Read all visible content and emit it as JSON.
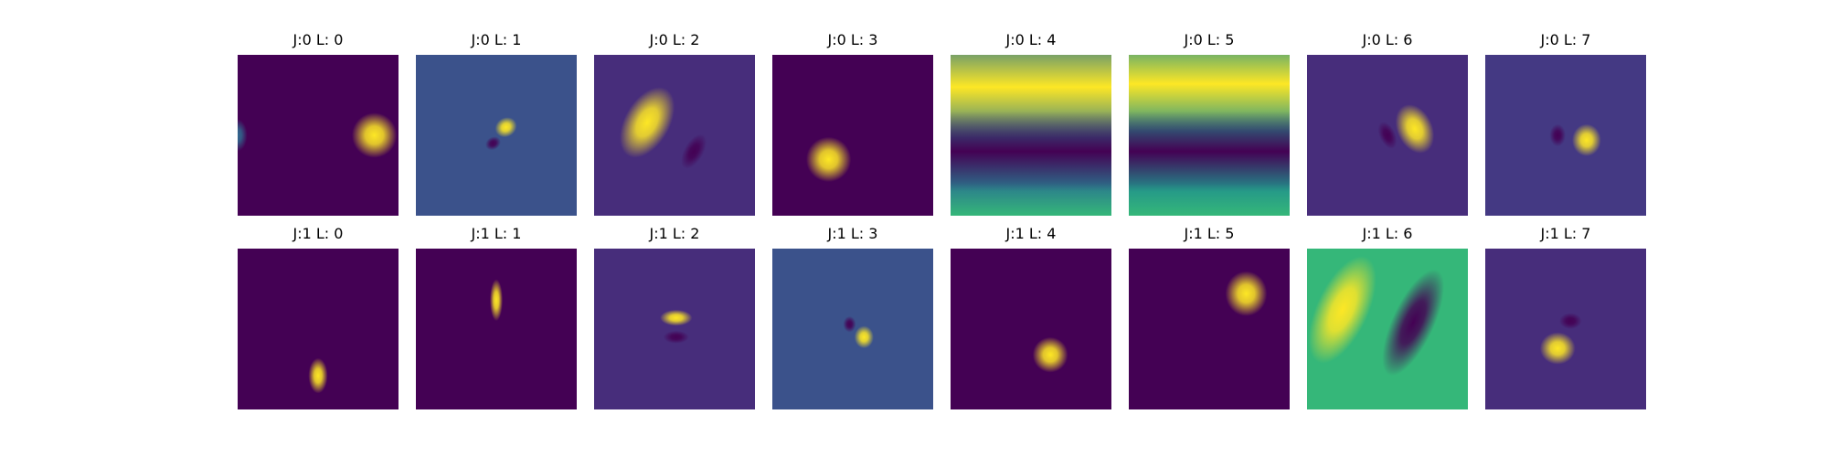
{
  "chart_data": [
    {
      "type": "heatmap",
      "title": "J:0 L: 0",
      "colormap": "viridis",
      "background": "#440154",
      "blobs": [
        {
          "cx": 0.85,
          "cy": 0.5,
          "rx": 0.14,
          "ry": 0.14,
          "rot": 0,
          "color": "#fde725"
        },
        {
          "cx": 0.0,
          "cy": 0.5,
          "rx": 0.06,
          "ry": 0.1,
          "rot": 0,
          "color": "#31688e"
        }
      ]
    },
    {
      "type": "heatmap",
      "title": "J:0 L: 1",
      "colormap": "viridis",
      "background": "#3b528b",
      "blobs": [
        {
          "cx": 0.56,
          "cy": 0.45,
          "rx": 0.07,
          "ry": 0.06,
          "rot": -30,
          "color": "#fde725"
        },
        {
          "cx": 0.48,
          "cy": 0.55,
          "rx": 0.05,
          "ry": 0.04,
          "rot": -30,
          "color": "#440154"
        }
      ]
    },
    {
      "type": "heatmap",
      "title": "J:0 L: 2",
      "colormap": "viridis",
      "background": "#472d7b",
      "blobs": [
        {
          "cx": 0.33,
          "cy": 0.42,
          "rx": 0.14,
          "ry": 0.24,
          "rot": 30,
          "color": "#fde725"
        },
        {
          "cx": 0.62,
          "cy": 0.6,
          "rx": 0.06,
          "ry": 0.12,
          "rot": 30,
          "color": "#440154"
        }
      ]
    },
    {
      "type": "heatmap",
      "title": "J:0 L: 3",
      "colormap": "viridis",
      "background": "#440154",
      "blobs": [
        {
          "cx": 0.35,
          "cy": 0.65,
          "rx": 0.14,
          "ry": 0.14,
          "rot": 0,
          "color": "#fde725"
        }
      ]
    },
    {
      "type": "heatmap",
      "title": "J:0 L: 4",
      "colormap": "viridis",
      "background": "#2a788e",
      "bands": [
        {
          "y": 0.2,
          "h": 0.32,
          "color": "#fde725"
        },
        {
          "y": 0.6,
          "h": 0.25,
          "color": "#440154"
        },
        {
          "y": 1.0,
          "h": 0.2,
          "color": "#35b779"
        }
      ]
    },
    {
      "type": "heatmap",
      "title": "J:0 L: 5",
      "colormap": "viridis",
      "background": "#21918c",
      "bands": [
        {
          "y": 0.18,
          "h": 0.3,
          "color": "#fde725"
        },
        {
          "y": 0.6,
          "h": 0.25,
          "color": "#440154"
        },
        {
          "y": 1.0,
          "h": 0.2,
          "color": "#35b779"
        }
      ]
    },
    {
      "type": "heatmap",
      "title": "J:0 L: 6",
      "colormap": "viridis",
      "background": "#472d7b",
      "blobs": [
        {
          "cx": 0.67,
          "cy": 0.46,
          "rx": 0.11,
          "ry": 0.16,
          "rot": -25,
          "color": "#fde725"
        },
        {
          "cx": 0.5,
          "cy": 0.5,
          "rx": 0.05,
          "ry": 0.09,
          "rot": -25,
          "color": "#440154"
        }
      ]
    },
    {
      "type": "heatmap",
      "title": "J:0 L: 7",
      "colormap": "viridis",
      "background": "#443983",
      "blobs": [
        {
          "cx": 0.63,
          "cy": 0.53,
          "rx": 0.09,
          "ry": 0.1,
          "rot": 0,
          "color": "#fde725"
        },
        {
          "cx": 0.45,
          "cy": 0.5,
          "rx": 0.05,
          "ry": 0.07,
          "rot": 0,
          "color": "#440154"
        }
      ]
    },
    {
      "type": "heatmap",
      "title": "J:1 L: 0",
      "colormap": "viridis",
      "background": "#440154",
      "blobs": [
        {
          "cx": 0.5,
          "cy": 0.79,
          "rx": 0.06,
          "ry": 0.11,
          "rot": 0,
          "color": "#fde725"
        }
      ]
    },
    {
      "type": "heatmap",
      "title": "J:1 L: 1",
      "colormap": "viridis",
      "background": "#440154",
      "blobs": [
        {
          "cx": 0.5,
          "cy": 0.32,
          "rx": 0.04,
          "ry": 0.13,
          "rot": 0,
          "color": "#fde725"
        }
      ]
    },
    {
      "type": "heatmap",
      "title": "J:1 L: 2",
      "colormap": "viridis",
      "background": "#472d7b",
      "blobs": [
        {
          "cx": 0.51,
          "cy": 0.43,
          "rx": 0.1,
          "ry": 0.05,
          "rot": 0,
          "color": "#fde725"
        },
        {
          "cx": 0.51,
          "cy": 0.55,
          "rx": 0.08,
          "ry": 0.04,
          "rot": 0,
          "color": "#440154"
        }
      ]
    },
    {
      "type": "heatmap",
      "title": "J:1 L: 3",
      "colormap": "viridis",
      "background": "#3b528b",
      "blobs": [
        {
          "cx": 0.57,
          "cy": 0.55,
          "rx": 0.06,
          "ry": 0.07,
          "rot": 0,
          "color": "#fde725"
        },
        {
          "cx": 0.48,
          "cy": 0.47,
          "rx": 0.04,
          "ry": 0.05,
          "rot": 0,
          "color": "#440154"
        }
      ]
    },
    {
      "type": "heatmap",
      "title": "J:1 L: 4",
      "colormap": "viridis",
      "background": "#440154",
      "blobs": [
        {
          "cx": 0.62,
          "cy": 0.66,
          "rx": 0.11,
          "ry": 0.11,
          "rot": 0,
          "color": "#fde725"
        }
      ]
    },
    {
      "type": "heatmap",
      "title": "J:1 L: 5",
      "colormap": "viridis",
      "background": "#440154",
      "blobs": [
        {
          "cx": 0.73,
          "cy": 0.28,
          "rx": 0.13,
          "ry": 0.14,
          "rot": 0,
          "color": "#fde725"
        }
      ]
    },
    {
      "type": "heatmap",
      "title": "J:1 L: 6",
      "colormap": "viridis",
      "background": "#35b779",
      "blobs": [
        {
          "cx": 0.22,
          "cy": 0.38,
          "rx": 0.16,
          "ry": 0.36,
          "rot": 25,
          "color": "#fde725"
        },
        {
          "cx": 0.66,
          "cy": 0.46,
          "rx": 0.13,
          "ry": 0.36,
          "rot": 25,
          "color": "#440154"
        }
      ]
    },
    {
      "type": "heatmap",
      "title": "J:1 L: 7",
      "colormap": "viridis",
      "background": "#472d7b",
      "blobs": [
        {
          "cx": 0.45,
          "cy": 0.62,
          "rx": 0.11,
          "ry": 0.1,
          "rot": 0,
          "color": "#fde725"
        },
        {
          "cx": 0.53,
          "cy": 0.45,
          "rx": 0.07,
          "ry": 0.05,
          "rot": 0,
          "color": "#440154"
        }
      ]
    }
  ]
}
